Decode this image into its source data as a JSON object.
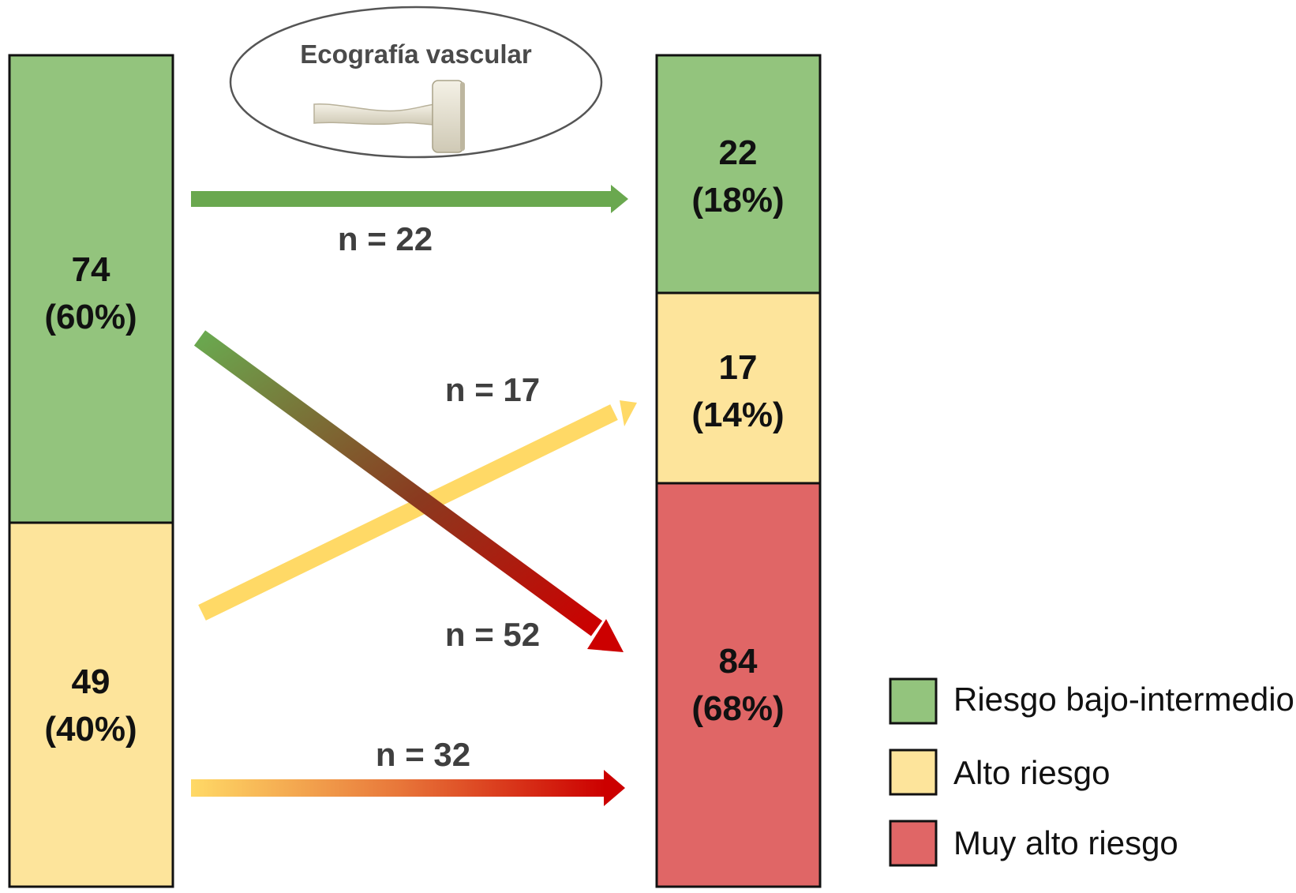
{
  "title": "Ecografía vascular",
  "colors": {
    "low_intermediate": "#93c47d",
    "high": "#fde49b",
    "very_high": "#e06666",
    "arrow_green": "#6aa84f",
    "arrow_yellow": "#ffd966",
    "arrow_red": "#cc0000"
  },
  "before": {
    "low_intermediate": {
      "count": "74",
      "percent": "(60%)"
    },
    "high": {
      "count": "49",
      "percent": "(40%)"
    }
  },
  "after": {
    "low_intermediate": {
      "count": "22",
      "percent": "(18%)"
    },
    "high": {
      "count": "17",
      "percent": "(14%)"
    },
    "very_high": {
      "count": "84",
      "percent": "(68%)"
    }
  },
  "flows": {
    "low_to_low": "n = 22",
    "high_to_high": "n = 17",
    "low_to_very_high": "n = 52",
    "high_to_very_high": "n = 32"
  },
  "legend": [
    {
      "label": "Riesgo bajo-intermedio",
      "color": "#93c47d"
    },
    {
      "label": "Alto riesgo",
      "color": "#fde49b"
    },
    {
      "label": "Muy alto riesgo",
      "color": "#e06666"
    }
  ],
  "icons": {
    "probe": "ultrasound-probe-icon"
  }
}
